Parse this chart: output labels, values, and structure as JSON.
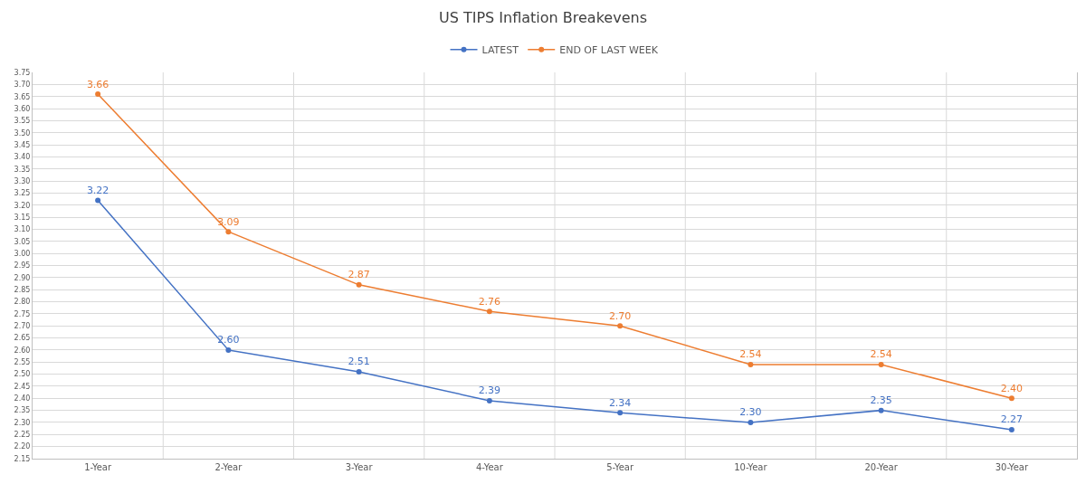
{
  "chart_data": {
    "type": "line",
    "title": "US TIPS Inflation Breakevens",
    "categories": [
      "1-Year",
      "2-Year",
      "3-Year",
      "4-Year",
      "5-Year",
      "10-Year",
      "20-Year",
      "30-Year"
    ],
    "series": [
      {
        "name": "LATEST",
        "color": "#4472c4",
        "values": [
          3.22,
          2.6,
          2.51,
          2.39,
          2.34,
          2.3,
          2.35,
          2.27
        ],
        "value_labels": [
          "3.22",
          "2.60",
          "2.51",
          "2.39",
          "2.34",
          "2.30",
          "2.35",
          "2.27"
        ]
      },
      {
        "name": "END OF LAST WEEK",
        "color": "#ed7d31",
        "values": [
          3.66,
          3.09,
          2.87,
          2.76,
          2.7,
          2.54,
          2.54,
          2.4
        ],
        "value_labels": [
          "3.66",
          "3.09",
          "2.87",
          "2.76",
          "2.70",
          "2.54",
          "2.54",
          "2.40"
        ]
      }
    ],
    "ylim": [
      2.15,
      3.75
    ],
    "yticks": [
      {
        "value": 2.15,
        "label": "2.15"
      },
      {
        "value": 2.2,
        "label": "2.20"
      },
      {
        "value": 2.25,
        "label": "2.25"
      },
      {
        "value": 2.3,
        "label": "2.30"
      },
      {
        "value": 2.35,
        "label": "2.35"
      },
      {
        "value": 2.4,
        "label": "2.40"
      },
      {
        "value": 2.45,
        "label": "2.45"
      },
      {
        "value": 2.5,
        "label": "2.50"
      },
      {
        "value": 2.55,
        "label": "2.55"
      },
      {
        "value": 2.6,
        "label": "2.60"
      },
      {
        "value": 2.65,
        "label": "2.65"
      },
      {
        "value": 2.7,
        "label": "2.70"
      },
      {
        "value": 2.75,
        "label": "2.75"
      },
      {
        "value": 2.8,
        "label": "2.80"
      },
      {
        "value": 2.85,
        "label": "2.85"
      },
      {
        "value": 2.9,
        "label": "2.90"
      },
      {
        "value": 2.95,
        "label": "2.95"
      },
      {
        "value": 3.0,
        "label": "3.00"
      },
      {
        "value": 3.05,
        "label": "3.05"
      },
      {
        "value": 3.1,
        "label": "3.10"
      },
      {
        "value": 3.15,
        "label": "3.15"
      },
      {
        "value": 3.2,
        "label": "3.20"
      },
      {
        "value": 3.25,
        "label": "3.25"
      },
      {
        "value": 3.3,
        "label": "3.30"
      },
      {
        "value": 3.35,
        "label": "3.35"
      },
      {
        "value": 3.4,
        "label": "3.40"
      },
      {
        "value": 3.45,
        "label": "3.45"
      },
      {
        "value": 3.5,
        "label": "3.50"
      },
      {
        "value": 3.55,
        "label": "3.55"
      },
      {
        "value": 3.6,
        "label": "3.60"
      },
      {
        "value": 3.65,
        "label": "3.65"
      },
      {
        "value": 3.7,
        "label": "3.70"
      },
      {
        "value": 3.75,
        "label": "3.75"
      }
    ],
    "grid": true,
    "legend": "top",
    "marker": "circle",
    "line_style": "solid"
  }
}
